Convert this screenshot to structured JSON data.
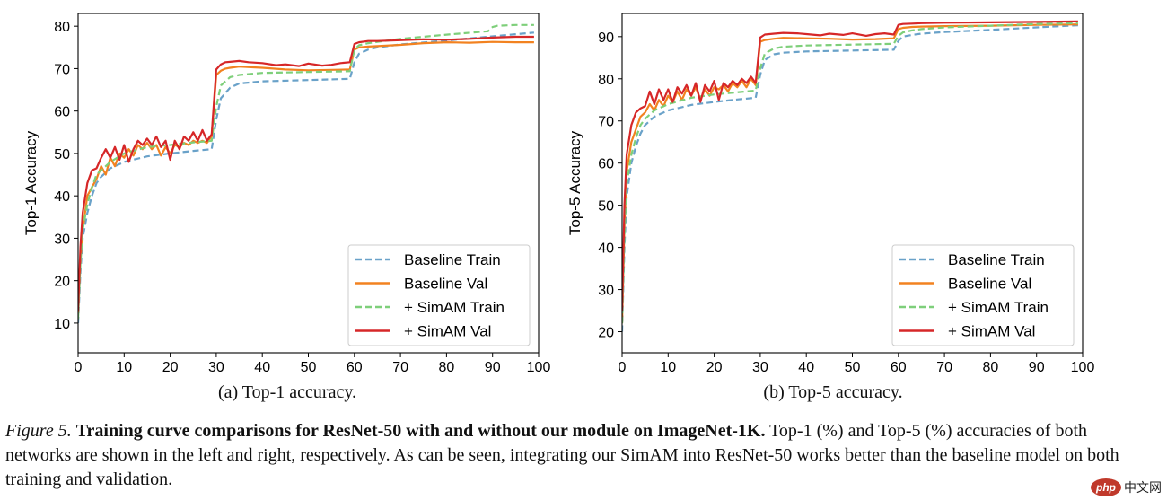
{
  "chart_data": [
    {
      "type": "line",
      "title": "",
      "xlabel": "",
      "ylabel": "Top-1 Accuracy",
      "xlim": [
        0,
        100
      ],
      "ylim": [
        3,
        83
      ],
      "xticks": [
        0,
        10,
        20,
        30,
        40,
        50,
        60,
        70,
        80,
        90,
        100
      ],
      "yticks": [
        10,
        20,
        30,
        40,
        50,
        60,
        70,
        80
      ],
      "legend_position": "bottom-right",
      "series": [
        {
          "name": "Baseline Train",
          "color": "#6aa2c9",
          "dash": "dashed",
          "x": [
            0,
            0.5,
            1,
            2,
            3,
            4,
            5,
            7,
            10,
            15,
            20,
            25,
            29,
            30,
            31,
            33,
            35,
            40,
            50,
            59,
            60,
            61,
            63,
            65,
            70,
            80,
            90,
            99
          ],
          "y": [
            10,
            22,
            30,
            36,
            40,
            43,
            44.5,
            46.5,
            48,
            49.3,
            50,
            50.6,
            51,
            58,
            63,
            65.5,
            66.5,
            67,
            67.3,
            67.6,
            71.5,
            73.5,
            74.5,
            75,
            75.7,
            76.6,
            77.6,
            78.5
          ]
        },
        {
          "name": "Baseline Val",
          "color": "#f28220",
          "dash": "solid",
          "x": [
            0,
            0.5,
            1,
            2,
            3,
            4,
            5,
            6,
            7,
            8,
            9,
            10,
            11,
            12,
            13,
            14,
            15,
            16,
            17,
            18,
            19,
            20,
            21,
            22,
            23,
            24,
            25,
            26,
            27,
            28,
            29,
            30,
            31,
            32,
            33,
            35,
            38,
            40,
            45,
            50,
            55,
            59,
            60,
            61,
            63,
            65,
            70,
            75,
            80,
            85,
            90,
            95,
            99
          ],
          "y": [
            12,
            25,
            32,
            40,
            42,
            44,
            47,
            45,
            49,
            47,
            50,
            49,
            51,
            49.5,
            52,
            51,
            52.5,
            51,
            52,
            49.5,
            51.5,
            50,
            52,
            51.5,
            52.5,
            52,
            53,
            52.5,
            53,
            52.5,
            54,
            68.5,
            69.5,
            70,
            70.2,
            70.5,
            70.3,
            70.2,
            69.8,
            69.6,
            69.7,
            69.8,
            74.5,
            75,
            75.2,
            75.3,
            75.6,
            76,
            76.2,
            76.1,
            76.3,
            76.2,
            76.2
          ]
        },
        {
          "name": "+ SimAM Train",
          "color": "#7ecf7a",
          "dash": "dashed",
          "x": [
            0,
            0.5,
            1,
            2,
            3,
            4,
            5,
            7,
            10,
            15,
            20,
            25,
            29,
            30,
            31,
            33,
            35,
            40,
            50,
            59,
            60,
            61,
            63,
            65,
            70,
            80,
            89,
            90,
            91,
            95,
            99
          ],
          "y": [
            11,
            24,
            32,
            38,
            42,
            45,
            46,
            48,
            50,
            51.5,
            52,
            52.6,
            53,
            61,
            66,
            68,
            68.5,
            69,
            69.2,
            69.4,
            74.5,
            75.5,
            76,
            76.3,
            77,
            78,
            78.8,
            79.8,
            80.1,
            80.3,
            80.3
          ]
        },
        {
          "name": "+ SimAM Val",
          "color": "#d62728",
          "dash": "solid",
          "x": [
            0,
            0.5,
            1,
            2,
            3,
            4,
            5,
            6,
            7,
            8,
            9,
            10,
            11,
            12,
            13,
            14,
            15,
            16,
            17,
            18,
            19,
            20,
            21,
            22,
            23,
            24,
            25,
            26,
            27,
            28,
            29,
            30,
            31,
            32,
            33,
            35,
            37,
            40,
            43,
            45,
            48,
            50,
            53,
            55,
            57,
            59,
            60,
            61,
            63,
            65,
            70,
            75,
            80,
            85,
            90,
            95,
            99
          ],
          "y": [
            13,
            28,
            36,
            43,
            46,
            46.5,
            49,
            51,
            49,
            51.5,
            48.5,
            52,
            48,
            51,
            53,
            52,
            53.5,
            52,
            54,
            51.5,
            53,
            48.5,
            53,
            51,
            54,
            53,
            55,
            53,
            55.5,
            53,
            54.5,
            69.8,
            71,
            71.5,
            71.6,
            71.8,
            71.5,
            71.3,
            70.8,
            71,
            70.6,
            71.2,
            70.7,
            70.9,
            71.3,
            71.5,
            75.8,
            76.2,
            76.5,
            76.5,
            76.7,
            76.9,
            76.8,
            77,
            77.3,
            77.5,
            77.5
          ]
        }
      ],
      "subcaption": "(a) Top-1 accuracy."
    },
    {
      "type": "line",
      "title": "",
      "xlabel": "",
      "ylabel": "Top-5 Accuracy",
      "xlim": [
        0,
        100
      ],
      "ylim": [
        15,
        95.5
      ],
      "xticks": [
        0,
        10,
        20,
        30,
        40,
        50,
        60,
        70,
        80,
        90,
        100
      ],
      "yticks": [
        20,
        30,
        40,
        50,
        60,
        70,
        80,
        90
      ],
      "legend_position": "bottom-right",
      "series": [
        {
          "name": "Baseline Train",
          "color": "#6aa2c9",
          "dash": "dashed",
          "x": [
            0,
            0.5,
            1,
            2,
            3,
            4,
            5,
            7,
            10,
            15,
            20,
            25,
            29,
            30,
            31,
            33,
            35,
            40,
            50,
            59,
            60,
            61,
            63,
            65,
            70,
            80,
            90,
            99
          ],
          "y": [
            20,
            40,
            52,
            60,
            64,
            67,
            69,
            71,
            72.5,
            73.8,
            74.5,
            75.1,
            75.5,
            81,
            84.5,
            85.8,
            86.2,
            86.5,
            86.7,
            86.9,
            89,
            90,
            90.4,
            90.7,
            91.1,
            91.6,
            92.2,
            92.7
          ]
        },
        {
          "name": "Baseline Val",
          "color": "#f28220",
          "dash": "solid",
          "x": [
            0,
            0.5,
            1,
            2,
            3,
            4,
            5,
            6,
            7,
            8,
            9,
            10,
            11,
            12,
            13,
            14,
            15,
            16,
            17,
            18,
            19,
            20,
            21,
            22,
            23,
            24,
            25,
            26,
            27,
            28,
            29,
            30,
            31,
            33,
            35,
            40,
            45,
            50,
            55,
            59,
            60,
            61,
            63,
            65,
            70,
            80,
            90,
            99
          ],
          "y": [
            22,
            45,
            58,
            65,
            68,
            71,
            72,
            74,
            72.5,
            75,
            73.5,
            76,
            74.5,
            77,
            75,
            77.5,
            76,
            78,
            75,
            77.5,
            76,
            78,
            77.5,
            78.5,
            77,
            79,
            78,
            79.5,
            78,
            80,
            78.5,
            88.8,
            89.2,
            89.5,
            89.7,
            89.6,
            89.5,
            89.3,
            89.4,
            89.6,
            91.8,
            92.1,
            92.3,
            92.4,
            92.5,
            92.6,
            92.8,
            92.9
          ]
        },
        {
          "name": "+ SimAM Train",
          "color": "#7ecf7a",
          "dash": "dashed",
          "x": [
            0,
            0.5,
            1,
            2,
            3,
            4,
            5,
            7,
            10,
            15,
            20,
            25,
            29,
            30,
            31,
            33,
            35,
            40,
            50,
            59,
            60,
            61,
            63,
            65,
            70,
            80,
            90,
            99
          ],
          "y": [
            22,
            43,
            55,
            62,
            66,
            69,
            70.5,
            72.5,
            74,
            75.5,
            76.3,
            76.8,
            77.2,
            82.5,
            86,
            87.2,
            87.6,
            87.9,
            88.1,
            88.3,
            90.2,
            91,
            91.5,
            91.8,
            92.2,
            92.6,
            93,
            93.2
          ]
        },
        {
          "name": "+ SimAM Val",
          "color": "#d62728",
          "dash": "solid",
          "x": [
            0,
            0.5,
            1,
            2,
            3,
            4,
            5,
            6,
            7,
            8,
            9,
            10,
            11,
            12,
            13,
            14,
            15,
            16,
            17,
            18,
            19,
            20,
            21,
            22,
            23,
            24,
            25,
            26,
            27,
            28,
            29,
            30,
            31,
            33,
            35,
            38,
            40,
            43,
            45,
            48,
            50,
            53,
            55,
            57,
            59,
            60,
            61,
            63,
            65,
            70,
            80,
            90,
            99
          ],
          "y": [
            25,
            50,
            62,
            69,
            72,
            73,
            73.5,
            77,
            74,
            77.5,
            75,
            77.5,
            74.5,
            78,
            76.5,
            78.5,
            76,
            79,
            74.5,
            78.5,
            77,
            79.5,
            75,
            79,
            78,
            79.5,
            78.5,
            80,
            79,
            80.5,
            79,
            89.8,
            90.5,
            90.7,
            90.9,
            90.8,
            90.6,
            90.3,
            90.7,
            90.4,
            90.8,
            90.2,
            90.6,
            90.8,
            90.5,
            92.8,
            93,
            93.1,
            93.2,
            93.3,
            93.4,
            93.5,
            93.6
          ]
        }
      ],
      "subcaption": "(b) Top-5 accuracy."
    }
  ],
  "caption": {
    "label": "Figure 5.",
    "bold": "Training curve comparisons for ResNet-50 with and without our module on ImageNet-1K.",
    "text": "Top-1 (%) and Top-5 (%) accuracies of both networks are shown in the left and right, respectively. As can be seen, integrating our SimAM into ResNet-50 works better than the baseline model on both training and validation."
  },
  "watermark": {
    "logo": "php",
    "site": "中文网"
  }
}
